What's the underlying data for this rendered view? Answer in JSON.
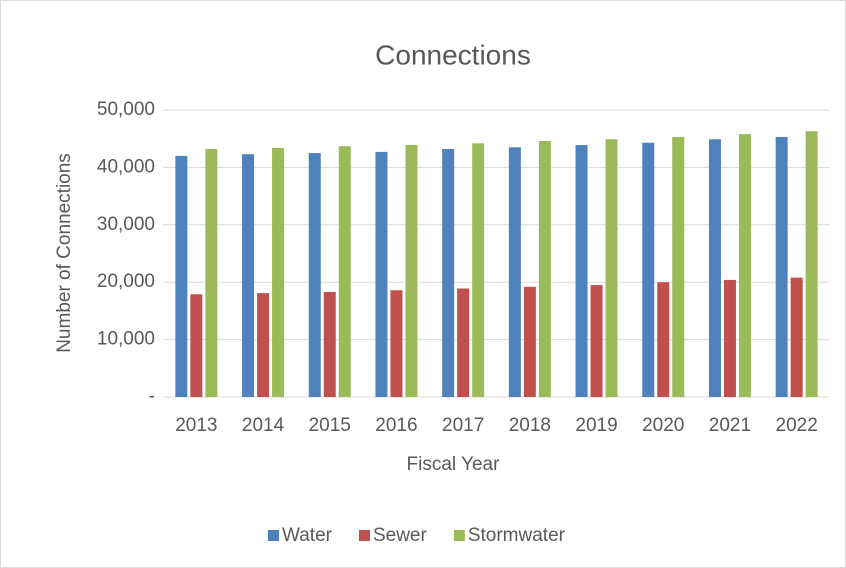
{
  "chart_data": {
    "type": "bar",
    "title": "Connections",
    "x_label": "Fiscal Year",
    "y_label": "Number of Connections",
    "categories": [
      "2013",
      "2014",
      "2015",
      "2016",
      "2017",
      "2018",
      "2019",
      "2020",
      "2021",
      "2022"
    ],
    "series": [
      {
        "name": "Water",
        "color": "#4f81bd",
        "values": [
          42000,
          42300,
          42500,
          42700,
          43200,
          43500,
          43900,
          44300,
          44900,
          45300
        ]
      },
      {
        "name": "Sewer",
        "color": "#c0504d",
        "values": [
          17900,
          18100,
          18300,
          18600,
          18900,
          19200,
          19500,
          20000,
          20400,
          20800
        ]
      },
      {
        "name": "Stormwater",
        "color": "#9bbb59",
        "values": [
          43200,
          43400,
          43700,
          43900,
          44200,
          44600,
          44900,
          45300,
          45800,
          46300
        ]
      }
    ],
    "ylim": [
      0,
      50000
    ],
    "yticks": [
      {
        "value": 0,
        "label": "-"
      },
      {
        "value": 10000,
        "label": "10,000"
      },
      {
        "value": 20000,
        "label": "20,000"
      },
      {
        "value": 30000,
        "label": "30,000"
      },
      {
        "value": 40000,
        "label": "40,000"
      },
      {
        "value": 50000,
        "label": "50,000"
      }
    ],
    "grid": true,
    "legend": "bottom"
  }
}
